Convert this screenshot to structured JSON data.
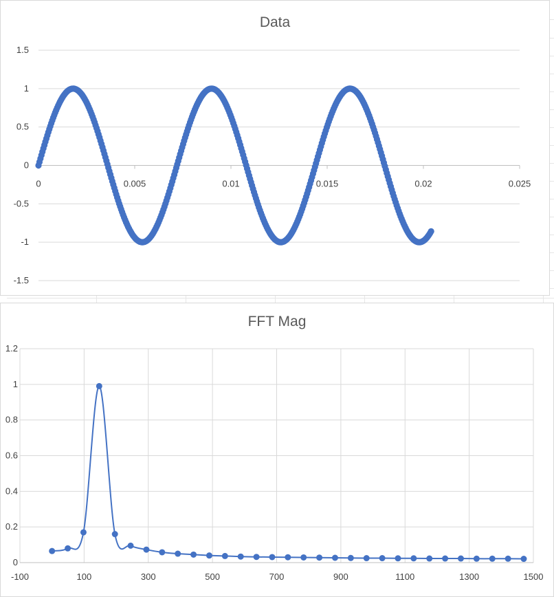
{
  "colors": {
    "series": "#4472c4",
    "grid": "#d9d9d9",
    "text": "#595959"
  },
  "chart_data": [
    {
      "type": "scatter",
      "title": "Data",
      "xlim": [
        0,
        0.025
      ],
      "ylim": [
        -1.5,
        1.5
      ],
      "x_ticks": [
        "0",
        "0.005",
        "0.01",
        "0.015",
        "0.02",
        "0.025"
      ],
      "y_ticks": [
        "1.5",
        "1",
        "0.5",
        "0",
        "-0.5",
        "-1",
        "-1.5"
      ],
      "grid": "horizontal",
      "series": [
        {
          "x_start": 0,
          "x_end": 0.0204,
          "points": 400,
          "frequency_hz": 139,
          "amplitude": 1
        }
      ]
    },
    {
      "type": "scatter",
      "title": "FFT Mag",
      "xlim": [
        -100,
        1500
      ],
      "ylim": [
        0,
        1.2
      ],
      "x_ticks": [
        "-100",
        "100",
        "300",
        "500",
        "700",
        "900",
        "1100",
        "1300",
        "1500"
      ],
      "y_ticks": [
        "1.2",
        "1",
        "0.8",
        "0.6",
        "0.4",
        "0.2",
        "0"
      ],
      "grid": "both",
      "x": [
        0,
        49,
        98,
        147,
        196,
        245,
        294,
        343,
        392,
        441,
        490,
        539,
        588,
        637,
        686,
        735,
        784,
        833,
        882,
        931,
        980,
        1029,
        1078,
        1127,
        1176,
        1225,
        1274,
        1323,
        1372,
        1421,
        1470
      ],
      "values": [
        0.065,
        0.08,
        0.17,
        0.99,
        0.16,
        0.095,
        0.073,
        0.058,
        0.05,
        0.045,
        0.04,
        0.037,
        0.034,
        0.032,
        0.031,
        0.03,
        0.029,
        0.028,
        0.027,
        0.026,
        0.025,
        0.025,
        0.024,
        0.024,
        0.023,
        0.023,
        0.023,
        0.022,
        0.022,
        0.022,
        0.021
      ]
    }
  ]
}
